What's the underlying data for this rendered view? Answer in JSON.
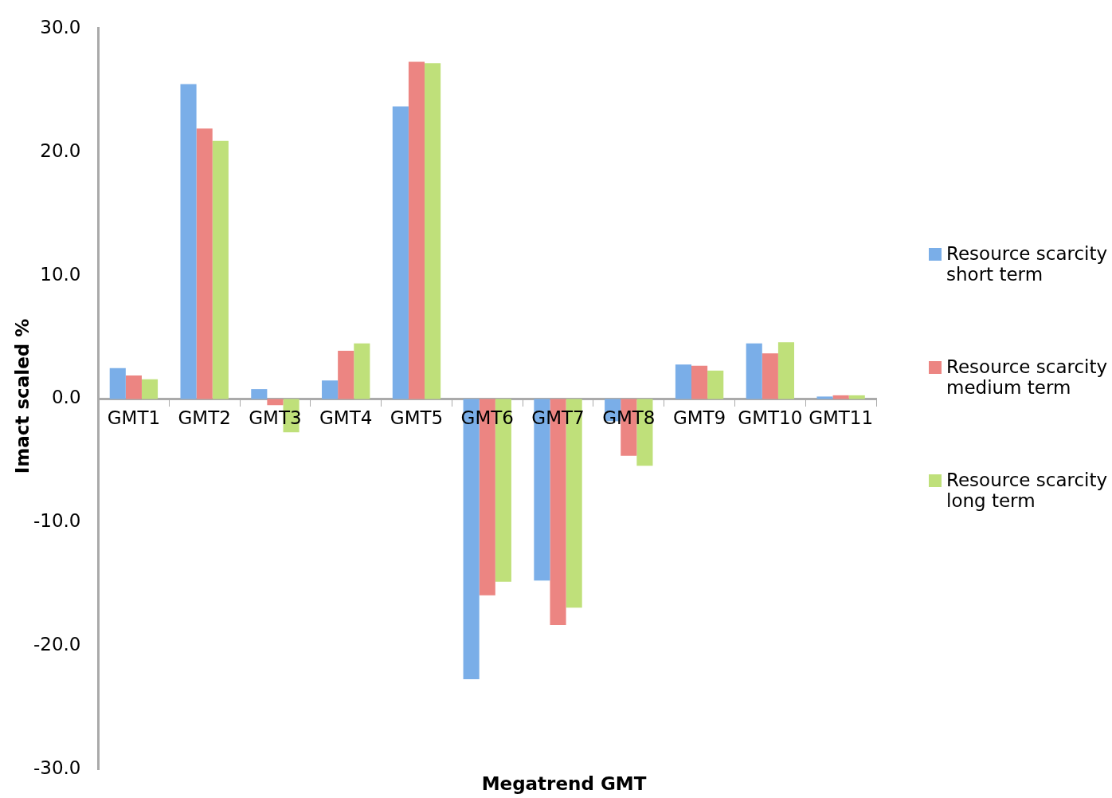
{
  "chart_data": {
    "type": "bar",
    "xlabel": "Megatrend GMT",
    "ylabel": "Imact scaled %",
    "categories": [
      "GMT1",
      "GMT2",
      "GMT3",
      "GMT4",
      "GMT5",
      "GMT6",
      "GMT7",
      "GMT8",
      "GMT9",
      "GMT10",
      "GMT11"
    ],
    "series": [
      {
        "name": "Resource scarcity short term",
        "color": "#7aaee8",
        "values": [
          2.5,
          25.5,
          0.8,
          1.5,
          23.7,
          -22.7,
          -14.7,
          -1.8,
          2.8,
          4.5,
          0.2
        ]
      },
      {
        "name": "Resource scarcity medium term",
        "color": "#ec8582",
        "values": [
          1.9,
          21.9,
          -0.5,
          3.9,
          27.3,
          -15.9,
          -18.3,
          -4.6,
          2.7,
          3.7,
          0.3
        ]
      },
      {
        "name": "Resource scarcity long term",
        "color": "#bfe07a",
        "values": [
          1.6,
          20.9,
          -2.7,
          4.5,
          27.2,
          -14.8,
          -16.9,
          -5.4,
          2.3,
          4.6,
          0.3
        ]
      }
    ],
    "ylim": [
      -30,
      30
    ],
    "yticks": [
      {
        "value": -30,
        "label": "-30.0"
      },
      {
        "value": -20,
        "label": "-20.0"
      },
      {
        "value": -10,
        "label": "-10.0"
      },
      {
        "value": 0,
        "label": "0.0"
      },
      {
        "value": 10,
        "label": "10.0"
      },
      {
        "value": 20,
        "label": "20.0"
      },
      {
        "value": 30,
        "label": "30.0"
      }
    ],
    "grid": false,
    "legend": "right"
  }
}
